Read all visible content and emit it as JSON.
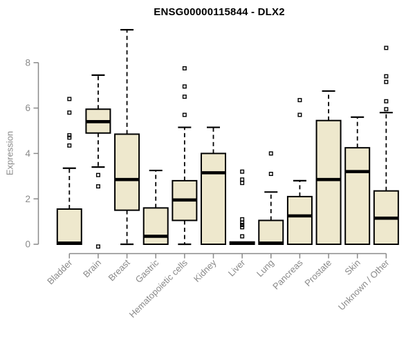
{
  "title": "ENSG00000115844 - DLX2",
  "colors": {
    "background": "#FFFFFF",
    "box_fill": "#EEE8CD",
    "box_stroke": "#000000",
    "median": "#000000",
    "whisker": "#000000",
    "outlier": "#000000",
    "axis": "#898989",
    "title_text": "#000000"
  },
  "chart_data": {
    "type": "boxplot",
    "title": "ENSG00000115844 - DLX2",
    "xlabel": "",
    "ylabel": "Expression",
    "ylim": [
      -0.2,
      9.6
    ],
    "yticks": [
      0,
      2,
      4,
      6,
      8
    ],
    "grid": false,
    "legend": "none",
    "categories": [
      "Bladder",
      "Brain",
      "Breast",
      "Gastric",
      "Hematopoietic cells",
      "Kidney",
      "Liver",
      "Lung",
      "Pancreas",
      "Prostate",
      "Skin",
      "Unknown / Other"
    ],
    "series": [
      {
        "name": "Bladder",
        "q1": 0,
        "median": 0.05,
        "q3": 1.55,
        "whisker_low": 0,
        "whisker_high": 3.35,
        "outliers": [
          4.35,
          4.7,
          4.8,
          5.8,
          6.4
        ]
      },
      {
        "name": "Brain",
        "q1": 4.9,
        "median": 5.4,
        "q3": 5.95,
        "whisker_low": 3.4,
        "whisker_high": 7.45,
        "outliers": [
          -0.1,
          2.55,
          3.05
        ]
      },
      {
        "name": "Breast",
        "q1": 1.5,
        "median": 2.85,
        "q3": 4.85,
        "whisker_low": 0,
        "whisker_high": 9.45,
        "outliers": []
      },
      {
        "name": "Gastric",
        "q1": 0,
        "median": 0.35,
        "q3": 1.6,
        "whisker_low": 0,
        "whisker_high": 3.25,
        "outliers": []
      },
      {
        "name": "Hematopoietic cells",
        "q1": 1.05,
        "median": 1.95,
        "q3": 2.8,
        "whisker_low": 0,
        "whisker_high": 5.15,
        "outliers": [
          5.7,
          6.5,
          6.95,
          7.75
        ]
      },
      {
        "name": "Kidney",
        "q1": 0,
        "median": 3.15,
        "q3": 4.0,
        "whisker_low": 0,
        "whisker_high": 5.15,
        "outliers": []
      },
      {
        "name": "Liver",
        "q1": 0,
        "median": 0.05,
        "q3": 0.1,
        "whisker_low": 0,
        "whisker_high": 0.1,
        "outliers": [
          0.35,
          0.75,
          0.85,
          0.95,
          1.1,
          2.7,
          2.85,
          3.2
        ]
      },
      {
        "name": "Lung",
        "q1": 0,
        "median": 0.05,
        "q3": 1.05,
        "whisker_low": 0,
        "whisker_high": 2.3,
        "outliers": [
          3.1,
          4.0
        ]
      },
      {
        "name": "Pancreas",
        "q1": 0,
        "median": 1.25,
        "q3": 2.1,
        "whisker_low": 0,
        "whisker_high": 2.8,
        "outliers": [
          5.7,
          6.35
        ]
      },
      {
        "name": "Prostate",
        "q1": 0,
        "median": 2.85,
        "q3": 5.45,
        "whisker_low": 0,
        "whisker_high": 6.75,
        "outliers": []
      },
      {
        "name": "Skin",
        "q1": 0,
        "median": 3.2,
        "q3": 4.25,
        "whisker_low": 0,
        "whisker_high": 5.6,
        "outliers": []
      },
      {
        "name": "Unknown / Other",
        "q1": 0,
        "median": 1.15,
        "q3": 2.35,
        "whisker_low": 0,
        "whisker_high": 5.8,
        "outliers": [
          5.95,
          6.3,
          7.15,
          7.4,
          8.65
        ]
      }
    ]
  }
}
